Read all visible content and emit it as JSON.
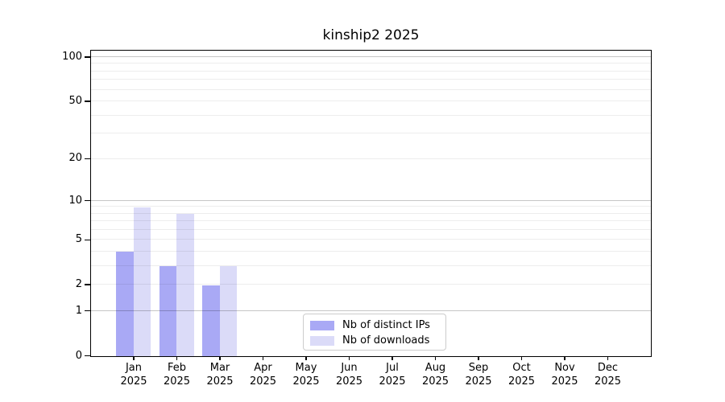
{
  "title": "kinship2 2025",
  "chart_data": {
    "type": "bar",
    "title": "kinship2 2025",
    "y_scale": "log10(value+1)",
    "categories": [
      "Jan",
      "Feb",
      "Mar",
      "Apr",
      "May",
      "Jun",
      "Jul",
      "Aug",
      "Sep",
      "Oct",
      "Nov",
      "Dec"
    ],
    "year_label": "2025",
    "series": [
      {
        "name": "Nb of distinct IPs",
        "color": "#a9a9f5",
        "values": [
          4,
          3,
          2,
          0,
          0,
          0,
          0,
          0,
          0,
          0,
          0,
          0
        ]
      },
      {
        "name": "Nb of downloads",
        "color": "#dbdbf8",
        "values": [
          9,
          8,
          3,
          0,
          0,
          0,
          0,
          0,
          0,
          0,
          0,
          0
        ]
      }
    ],
    "y_axis": {
      "ticks": [
        0,
        1,
        2,
        5,
        10,
        20,
        50,
        100
      ],
      "gridline_values": [
        1,
        2,
        3,
        4,
        5,
        6,
        7,
        8,
        9,
        10,
        20,
        30,
        40,
        50,
        60,
        70,
        80,
        90,
        100
      ],
      "major_gridline_values": [
        1,
        10,
        100
      ],
      "top_value": 110
    },
    "xlabel": "",
    "ylabel": "",
    "grid": true,
    "legend_position": "inside-bottom-center"
  },
  "legend": {
    "border_color": "#cccccc"
  },
  "colors": {
    "background": "#ffffff",
    "axis": "#000000",
    "grid_minor": "rgba(0,0,0,0.07)",
    "grid_major": "rgba(0,0,0,0.22)",
    "bar_distinct_ips": "#a9a9f5",
    "bar_downloads": "#dbdbf8"
  }
}
